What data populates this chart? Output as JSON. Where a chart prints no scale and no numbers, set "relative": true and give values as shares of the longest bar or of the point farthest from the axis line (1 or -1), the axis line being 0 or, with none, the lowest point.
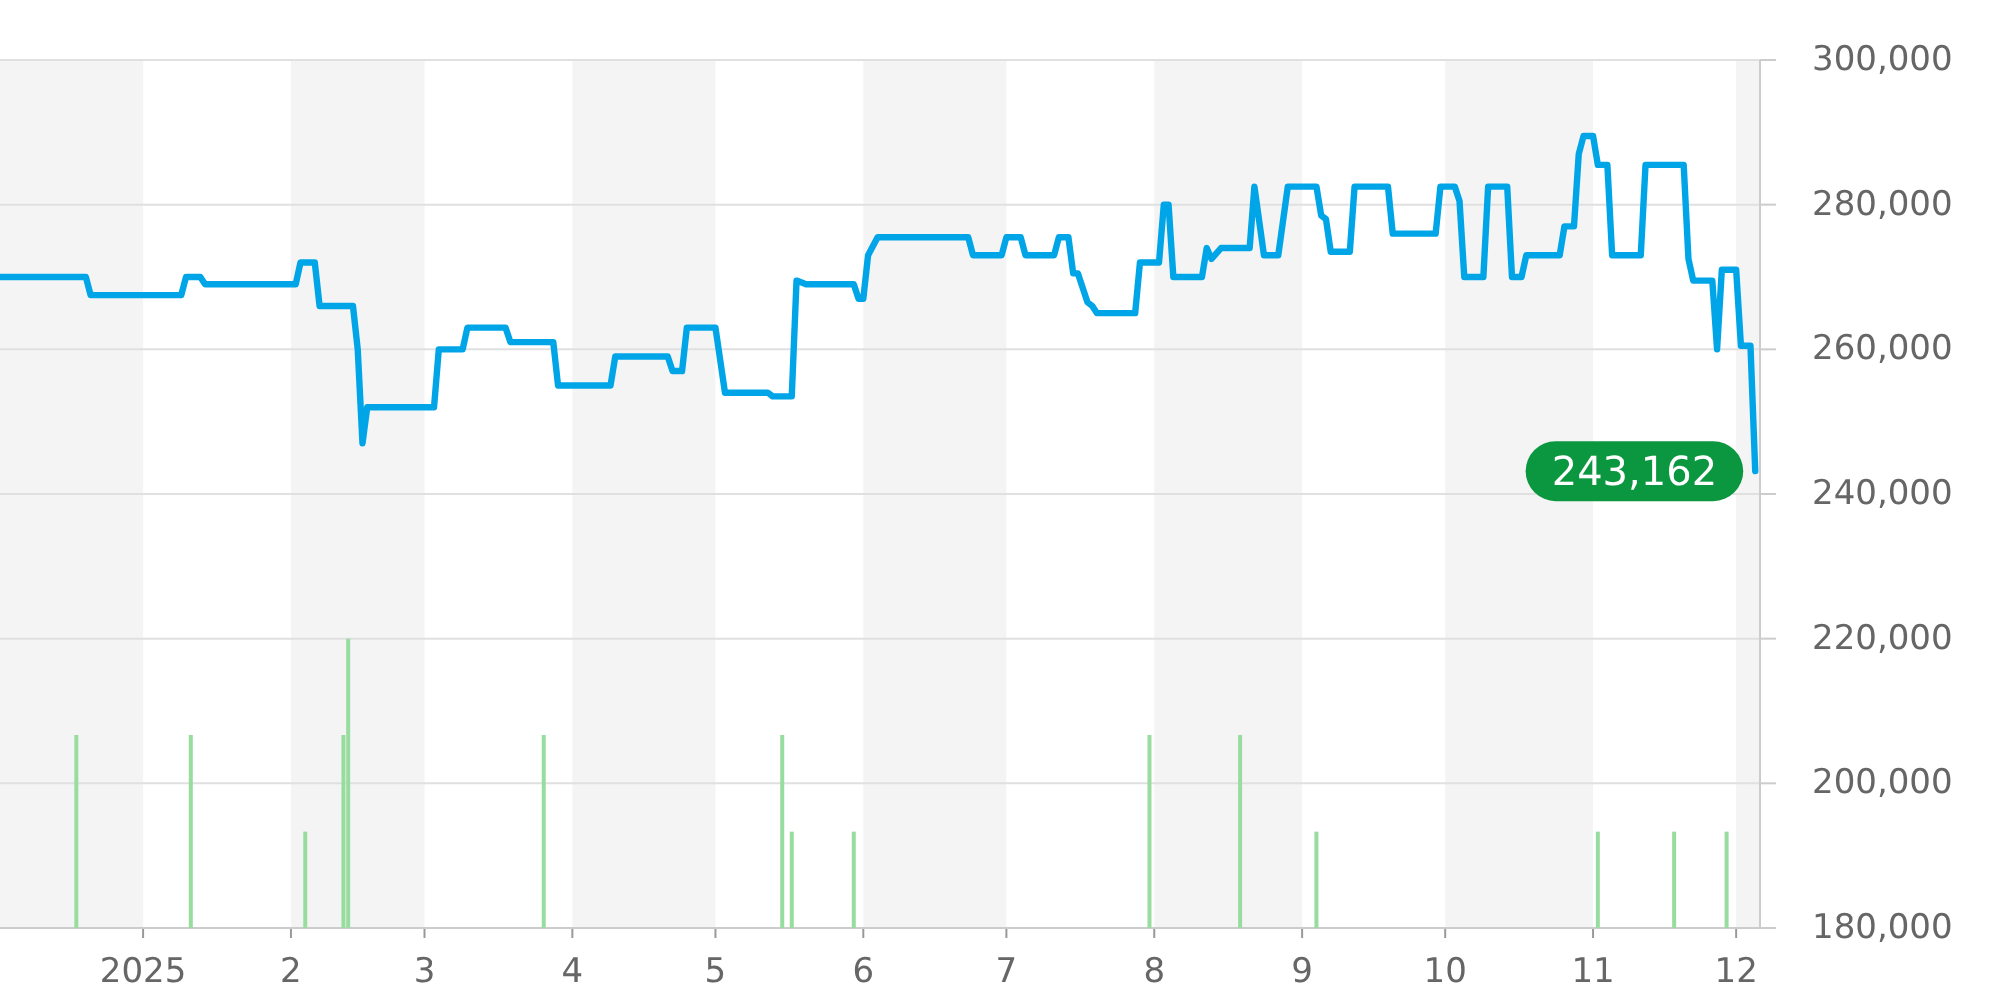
{
  "chart_data": [
    {
      "type": "line",
      "x": [
        "2024-12-02",
        "2024-12-20",
        "2024-12-21",
        "2025-01-09",
        "2025-01-10",
        "2025-01-13",
        "2025-01-14",
        "2025-02-02",
        "2025-02-03",
        "2025-02-06",
        "2025-02-07",
        "2025-02-14",
        "2025-02-15",
        "2025-02-16",
        "2025-02-17",
        "2025-03-03",
        "2025-03-04",
        "2025-03-09",
        "2025-03-10",
        "2025-03-18",
        "2025-03-19",
        "2025-03-28",
        "2025-03-29",
        "2025-04-09",
        "2025-04-10",
        "2025-04-21",
        "2025-04-22",
        "2025-04-24",
        "2025-04-25",
        "2025-05-01",
        "2025-05-03",
        "2025-05-12",
        "2025-05-13",
        "2025-05-17",
        "2025-05-18",
        "2025-05-20",
        "2025-05-30",
        "2025-05-31",
        "2025-06-01",
        "2025-06-02",
        "2025-06-04",
        "2025-06-23",
        "2025-06-24",
        "2025-06-30",
        "2025-07-01",
        "2025-07-04",
        "2025-07-05",
        "2025-07-11",
        "2025-07-12",
        "2025-07-14",
        "2025-07-15",
        "2025-07-16",
        "2025-07-18",
        "2025-07-19",
        "2025-07-20",
        "2025-07-28",
        "2025-07-29",
        "2025-08-02",
        "2025-08-03",
        "2025-08-04",
        "2025-08-05",
        "2025-08-11",
        "2025-08-12",
        "2025-08-13",
        "2025-08-15",
        "2025-08-21",
        "2025-08-22",
        "2025-08-24",
        "2025-08-27",
        "2025-08-29",
        "2025-09-04",
        "2025-09-05",
        "2025-09-06",
        "2025-09-07",
        "2025-09-11",
        "2025-09-12",
        "2025-09-19",
        "2025-09-20",
        "2025-09-29",
        "2025-09-30",
        "2025-10-03",
        "2025-10-04",
        "2025-10-05",
        "2025-10-09",
        "2025-10-10",
        "2025-10-14",
        "2025-10-15",
        "2025-10-17",
        "2025-10-18",
        "2025-10-25",
        "2025-10-26",
        "2025-10-28",
        "2025-10-29",
        "2025-10-30",
        "2025-11-01",
        "2025-11-02",
        "2025-11-04",
        "2025-11-05",
        "2025-11-11",
        "2025-11-12",
        "2025-11-20",
        "2025-11-21",
        "2025-11-22",
        "2025-11-26",
        "2025-11-27",
        "2025-11-28",
        "2025-12-01",
        "2025-12-02",
        "2025-12-04",
        "2025-12-05"
      ],
      "series": [
        {
          "color": "#00a5e8",
          "values": [
            270000,
            270000,
            267500,
            267500,
            270000,
            270000,
            269000,
            269000,
            272000,
            272000,
            266000,
            266000,
            260000,
            247000,
            252000,
            252000,
            260000,
            260000,
            263000,
            263000,
            261000,
            261000,
            255000,
            255000,
            259000,
            259000,
            257000,
            257000,
            263000,
            263000,
            254000,
            254000,
            253500,
            253500,
            269500,
            269000,
            269000,
            267000,
            267000,
            273000,
            275500,
            275500,
            273000,
            273000,
            275500,
            275500,
            273000,
            273000,
            275500,
            275500,
            270500,
            270500,
            266500,
            266000,
            265000,
            265000,
            272000,
            272000,
            280000,
            280000,
            270000,
            270000,
            274000,
            272500,
            274000,
            274000,
            282500,
            273000,
            273000,
            282500,
            282500,
            278500,
            278000,
            273500,
            273500,
            282500,
            282500,
            276000,
            276000,
            282500,
            282500,
            280500,
            270000,
            270000,
            282500,
            282500,
            270000,
            270000,
            273000,
            273000,
            277000,
            277000,
            287000,
            289500,
            289500,
            285500,
            285500,
            273000,
            273000,
            285500,
            285500,
            272500,
            269500,
            269500,
            260000,
            271000,
            271000,
            260500,
            260500,
            243162
          ]
        }
      ],
      "xlim": [
        "2024-12-02",
        "2025-12-06"
      ],
      "xticks": [
        {
          "value": "2025-01-01",
          "label": "2025"
        },
        {
          "value": "2025-02-01",
          "label": "2"
        },
        {
          "value": "2025-03-01",
          "label": "3"
        },
        {
          "value": "2025-04-01",
          "label": "4"
        },
        {
          "value": "2025-05-01",
          "label": "5"
        },
        {
          "value": "2025-06-01",
          "label": "6"
        },
        {
          "value": "2025-07-01",
          "label": "7"
        },
        {
          "value": "2025-08-01",
          "label": "8"
        },
        {
          "value": "2025-09-01",
          "label": "9"
        },
        {
          "value": "2025-10-01",
          "label": "10"
        },
        {
          "value": "2025-11-01",
          "label": "11"
        },
        {
          "value": "2025-12-01",
          "label": "12"
        }
      ],
      "ylim": [
        180000,
        300000
      ],
      "yticks": [
        {
          "value": 180000,
          "label": "180,000"
        },
        {
          "value": 200000,
          "label": "200,000"
        },
        {
          "value": 220000,
          "label": "220,000"
        },
        {
          "value": 240000,
          "label": "240,000"
        },
        {
          "value": 260000,
          "label": "260,000"
        },
        {
          "value": 280000,
          "label": "280,000"
        },
        {
          "value": 300000,
          "label": "300,000"
        }
      ],
      "grid": "y",
      "bands": [
        {
          "axis": "x",
          "from": "2024-12-02",
          "to": "2025-01-01",
          "color": "#f4f4f4"
        },
        {
          "axis": "x",
          "from": "2025-02-01",
          "to": "2025-03-01",
          "color": "#f4f4f4"
        },
        {
          "axis": "x",
          "from": "2025-04-01",
          "to": "2025-05-01",
          "color": "#f4f4f4"
        },
        {
          "axis": "x",
          "from": "2025-06-01",
          "to": "2025-07-01",
          "color": "#f4f4f4"
        },
        {
          "axis": "x",
          "from": "2025-08-01",
          "to": "2025-09-01",
          "color": "#f4f4f4"
        },
        {
          "axis": "x",
          "from": "2025-10-01",
          "to": "2025-11-01",
          "color": "#f4f4f4"
        },
        {
          "axis": "x",
          "from": "2025-12-01",
          "to": "2025-12-06",
          "color": "#f4f4f4"
        }
      ],
      "annotations": [
        {
          "text": "243,162",
          "x": "2025-12-05",
          "y": 243162
        }
      ]
    },
    {
      "type": "bar",
      "relative": true,
      "xlim": [
        "2024-12-02",
        "2025-12-06"
      ],
      "color": "#98dca0",
      "x": [
        "2024-12-18",
        "2025-01-11",
        "2025-02-04",
        "2025-02-12",
        "2025-02-13",
        "2025-03-26",
        "2025-05-15",
        "2025-05-17",
        "2025-05-30",
        "2025-07-31",
        "2025-08-19",
        "2025-09-04",
        "2025-11-02",
        "2025-11-18",
        "2025-11-29"
      ],
      "values": [
        0.667,
        0.667,
        0.333,
        0.667,
        1,
        0.667,
        0.667,
        0.333,
        0.333,
        0.667,
        0.667,
        0.333,
        0.333,
        0.333,
        0.333
      ]
    }
  ]
}
